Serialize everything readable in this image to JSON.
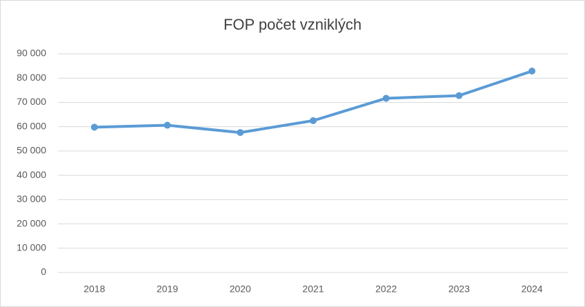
{
  "chart_data": {
    "type": "line",
    "title": "FOP počet vzniklých",
    "categories": [
      "2018",
      "2019",
      "2020",
      "2021",
      "2022",
      "2023",
      "2024"
    ],
    "series": [
      {
        "name": "FOP",
        "color": "#5b9bd5",
        "values": [
          59800,
          60600,
          57600,
          62500,
          71700,
          72800,
          82900
        ]
      }
    ],
    "ylim": [
      0,
      90000
    ],
    "yticks": [
      0,
      {
        "value": 10000,
        "label": "10 000"
      },
      {
        "value": 20000,
        "label": "20 000"
      },
      {
        "value": 30000,
        "label": "30 000"
      },
      {
        "value": 40000,
        "label": "40 000"
      },
      {
        "value": 50000,
        "label": "50 000"
      },
      {
        "value": 60000,
        "label": "60 000"
      },
      {
        "value": 70000,
        "label": "70 000"
      },
      {
        "value": 80000,
        "label": "80 000"
      },
      {
        "value": 90000,
        "label": "90 000"
      }
    ],
    "grid": true
  }
}
